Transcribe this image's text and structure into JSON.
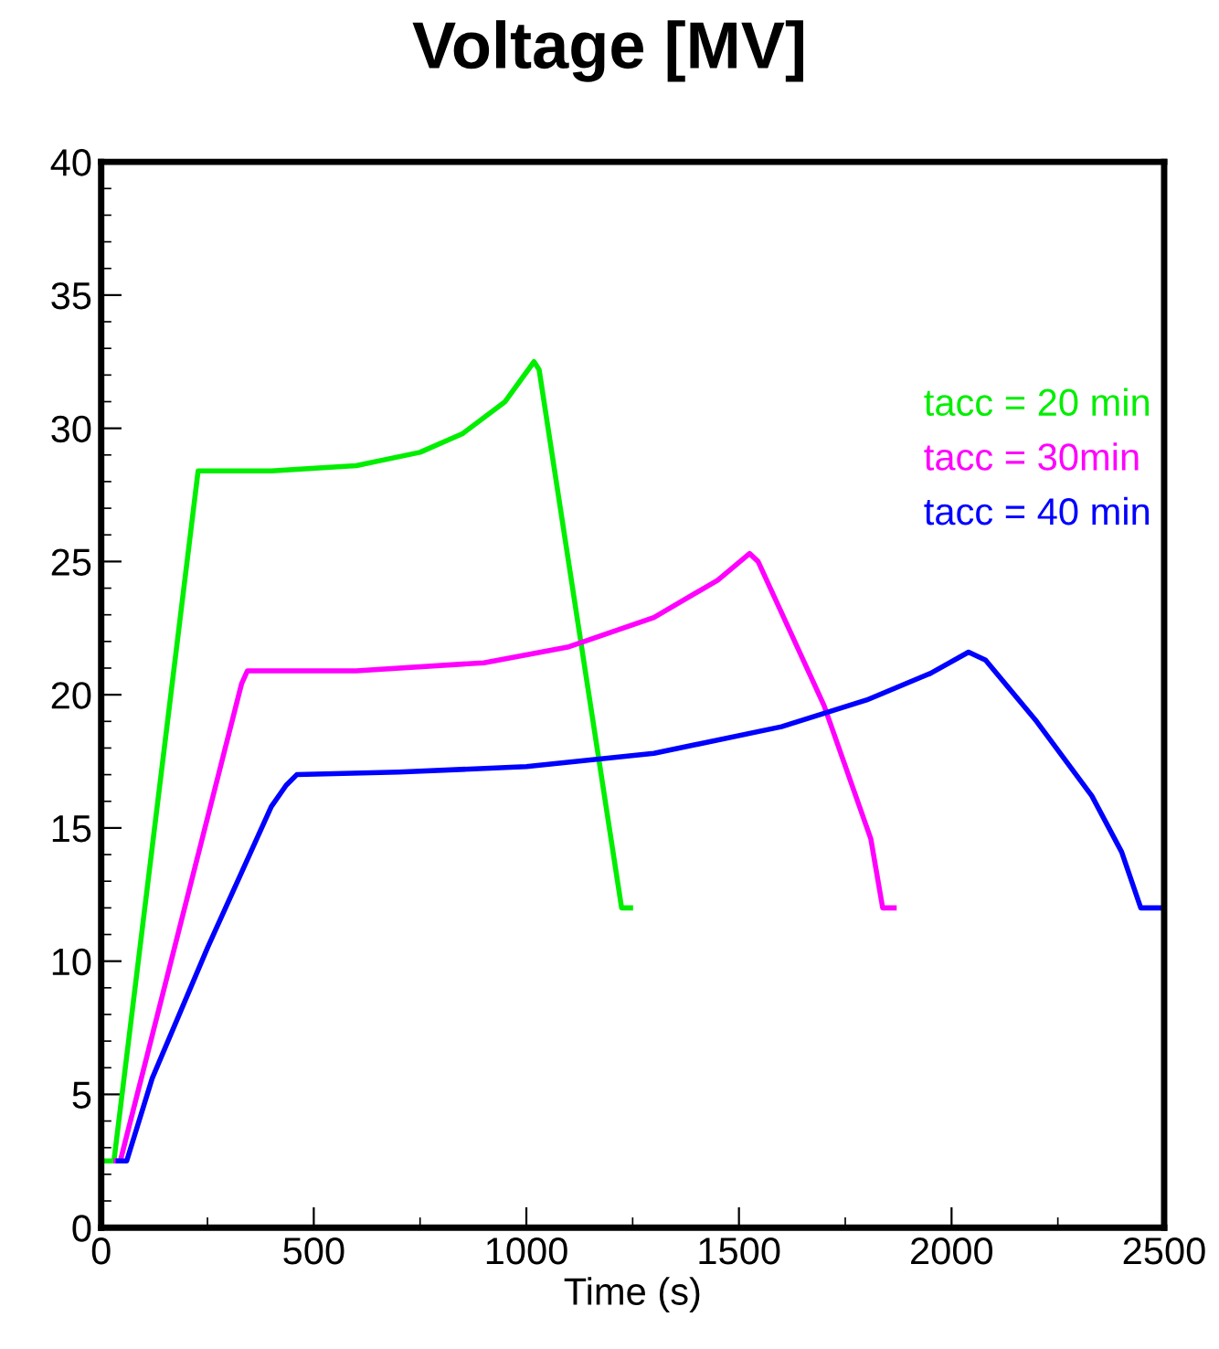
{
  "chart_data": {
    "type": "line",
    "title": "Voltage [MV]",
    "xlabel": "Time (s)",
    "xlim": [
      0,
      2500
    ],
    "xticks": [
      0,
      500,
      1000,
      1500,
      2000,
      2500
    ],
    "ylim": [
      0,
      40
    ],
    "yticks": [
      0,
      5,
      10,
      15,
      20,
      25,
      30,
      35,
      40
    ],
    "grid": false,
    "legend": "top right",
    "marker": "none",
    "line_style": "solid",
    "series": [
      {
        "name": "tacc = 20 min",
        "color": "#00ee00",
        "x": [
          0,
          30,
          228,
          400,
          600,
          750,
          850,
          950,
          1018,
          1030,
          1224,
          1245
        ],
        "values": [
          2.5,
          2.5,
          28.4,
          28.4,
          28.6,
          29.1,
          29.8,
          31.0,
          32.5,
          32.2,
          12,
          12
        ]
      },
      {
        "name": "tacc = 30min",
        "color": "#ff00ff",
        "x": [
          35,
          45,
          330,
          344,
          600,
          900,
          1100,
          1300,
          1450,
          1525,
          1545,
          1700,
          1810,
          1838,
          1865
        ],
        "values": [
          2.5,
          2.5,
          20.4,
          20.9,
          20.9,
          21.2,
          21.8,
          22.9,
          24.3,
          25.3,
          25.0,
          19.6,
          14.6,
          12,
          12
        ]
      },
      {
        "name": "tacc = 40 min",
        "color": "#0000ff",
        "x": [
          40,
          60,
          120,
          250,
          400,
          435,
          460,
          700,
          1000,
          1300,
          1600,
          1800,
          1950,
          2040,
          2080,
          2200,
          2330,
          2400,
          2445,
          2500
        ],
        "values": [
          2.5,
          2.5,
          5.6,
          10.5,
          15.8,
          16.6,
          17.0,
          17.1,
          17.3,
          17.8,
          18.8,
          19.8,
          20.8,
          21.6,
          21.3,
          19.0,
          16.2,
          14.1,
          12,
          12
        ]
      }
    ]
  }
}
